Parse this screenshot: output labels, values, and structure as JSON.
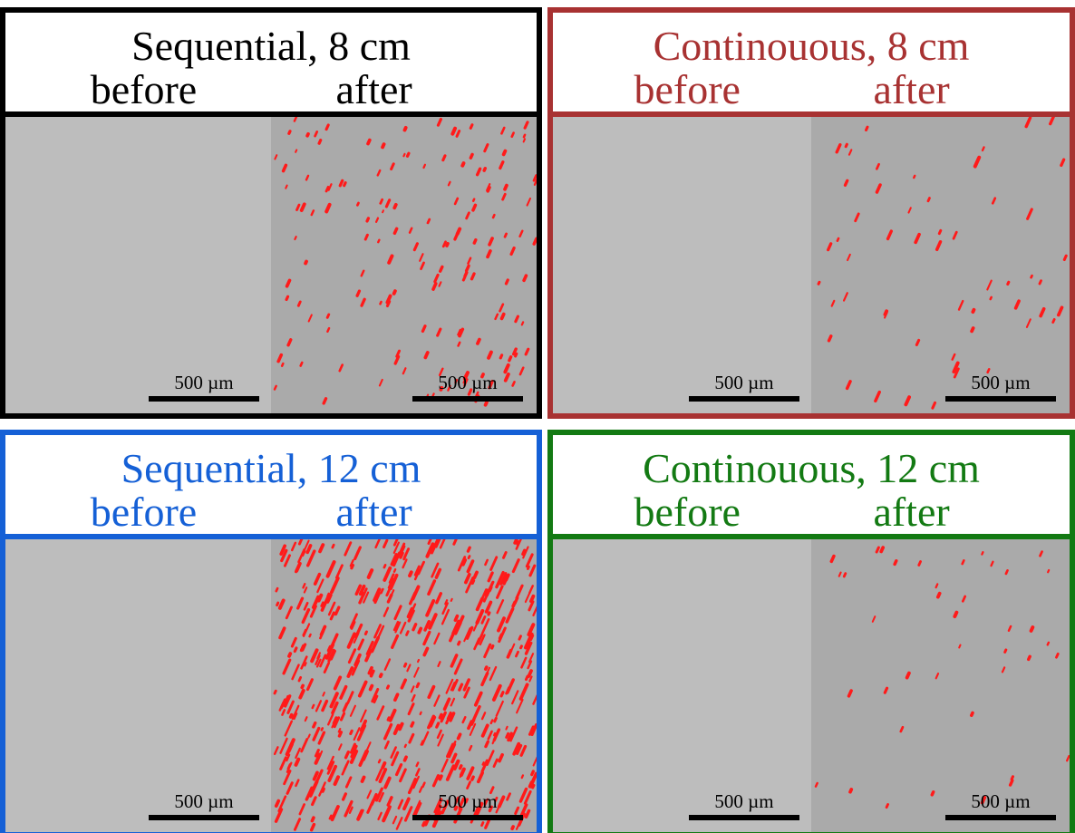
{
  "panels": [
    {
      "title": "Sequential, 8 cm",
      "before": "before",
      "after": "after",
      "scale_before": "500 µm",
      "scale_after": "500 µm",
      "color": "#000000"
    },
    {
      "title": "Continouous, 8 cm",
      "before": "before",
      "after": "after",
      "scale_before": "500 µm",
      "scale_after": "500 µm",
      "color": "#a83232"
    },
    {
      "title": "Sequential, 12 cm",
      "before": "before",
      "after": "after",
      "scale_before": "500 µm",
      "scale_after": "500 µm",
      "color": "#1560d6"
    },
    {
      "title": "Continouous, 12 cm",
      "before": "before",
      "after": "after",
      "scale_before": "500 µm",
      "scale_after": "500 µm",
      "color": "#137a13"
    }
  ]
}
